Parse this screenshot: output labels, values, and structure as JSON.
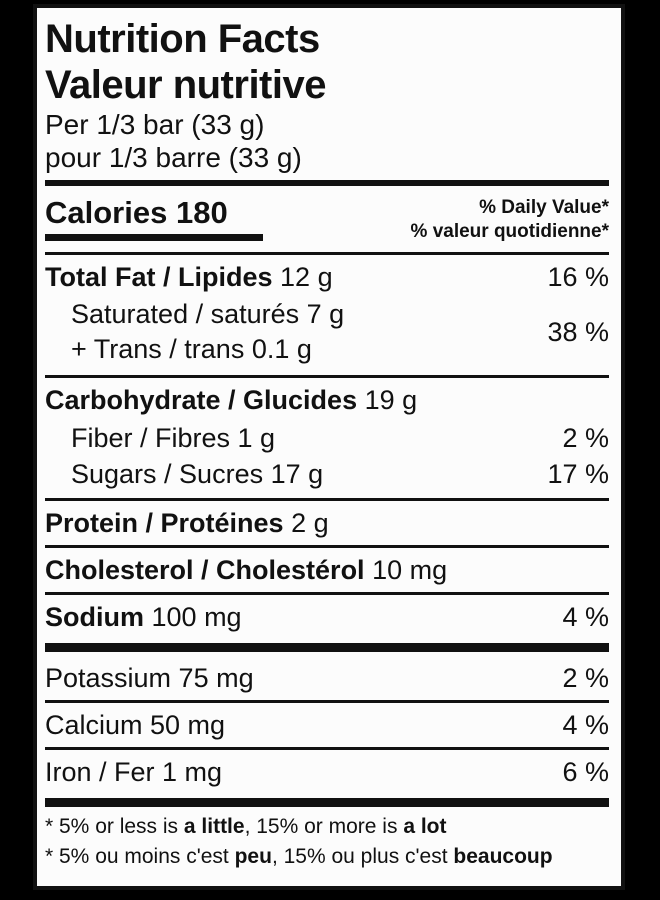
{
  "colors": {
    "ink": "#111111",
    "paper": "#fcfcfc",
    "background": "#000000"
  },
  "label": {
    "title_en": "Nutrition Facts",
    "title_fr": "Valeur nutritive",
    "serving_en": "Per 1/3 bar (33 g)",
    "serving_fr": "pour 1/3 barre (33 g)",
    "calories": {
      "label": "Calories",
      "value": "180"
    },
    "daily_value_en": "% Daily Value*",
    "daily_value_fr": "% valeur quotidienne*",
    "rows": {
      "fat": {
        "name": "Total Fat / Lipides",
        "amount": "12 g",
        "dv": "16 %"
      },
      "saturated": {
        "name": "Saturated / saturés 7 g"
      },
      "trans": {
        "name": "+ Trans / trans 0.1 g"
      },
      "sat_trans_dv": "38 %",
      "carb": {
        "name": "Carbohydrate / Glucides",
        "amount": "19 g"
      },
      "fiber": {
        "name": "Fiber / Fibres 1 g",
        "dv": "2 %"
      },
      "sugars": {
        "name": "Sugars / Sucres 17 g",
        "dv": "17 %"
      },
      "protein": {
        "name": "Protein / Protéines",
        "amount": "2 g"
      },
      "cholesterol": {
        "name": "Cholesterol / Cholestérol",
        "amount": "10 mg"
      },
      "sodium": {
        "name": "Sodium",
        "amount": "100 mg",
        "dv": "4 %"
      },
      "potassium": {
        "name": "Potassium 75 mg",
        "dv": "2 %"
      },
      "calcium": {
        "name": "Calcium 50 mg",
        "dv": "4 %"
      },
      "iron": {
        "name": "Iron / Fer 1 mg",
        "dv": "6 %"
      }
    },
    "footnote_en": {
      "p1": "* 5% or less is ",
      "b1": "a little",
      "p2": ", 15% or more is ",
      "b2": "a lot"
    },
    "footnote_fr": {
      "p1": "* 5% ou moins c'est ",
      "b1": "peu",
      "p2": ", 15% ou plus c'est ",
      "b2": "beaucoup"
    }
  }
}
